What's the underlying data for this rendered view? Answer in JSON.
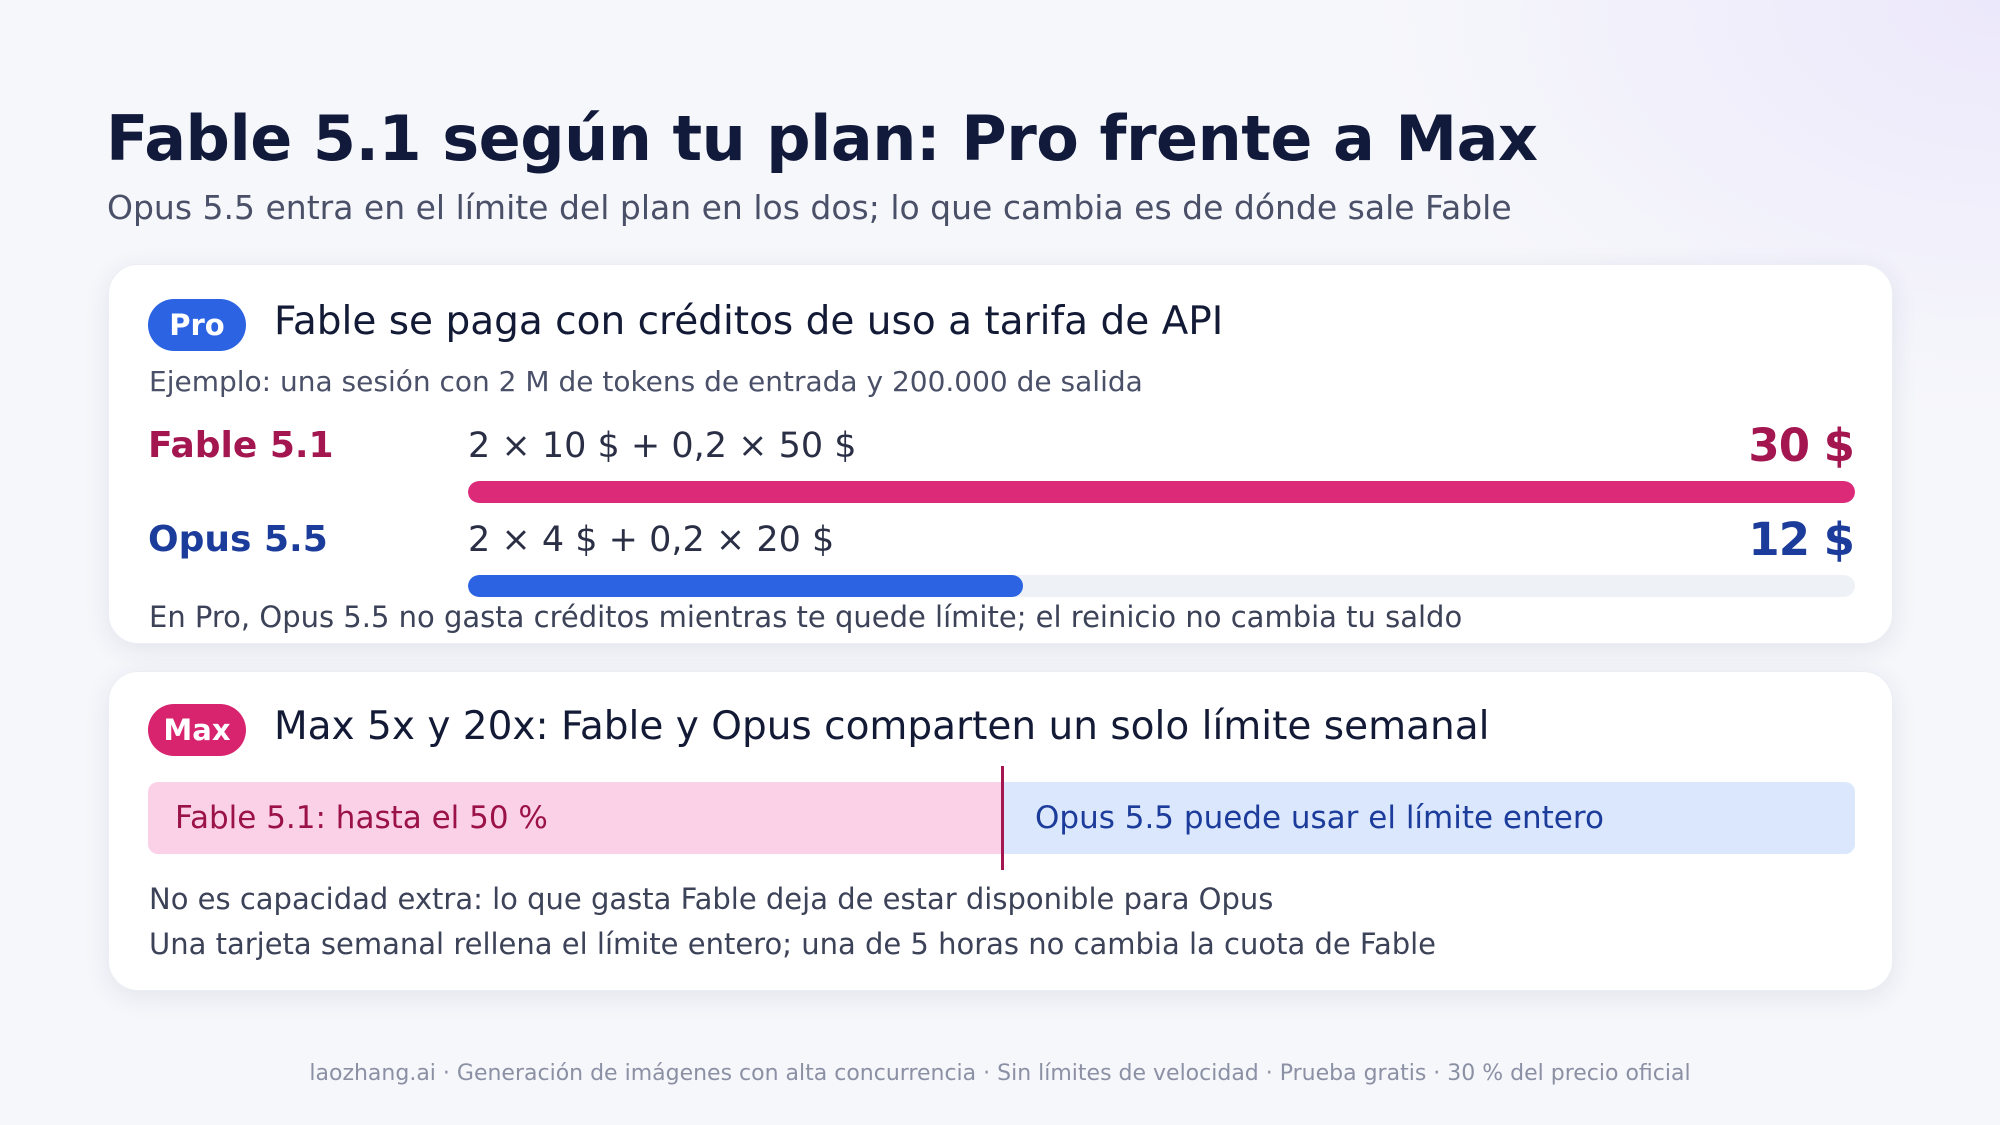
{
  "header": {
    "title": "Fable 5.1 según tu plan: Pro frente a Max",
    "subtitle": "Opus 5.5 entra en el límite del plan en los dos; lo que cambia es de dónde sale Fable"
  },
  "pro_card": {
    "badge": "Pro",
    "title": "Fable se paga con créditos de uso a tarifa de API",
    "example": "Ejemplo: una sesión con 2 M de tokens de entrada y 200.000 de salida",
    "rows": [
      {
        "name": "Fable 5.1",
        "formula": "2 × 10 $ + 0,2 × 50 $",
        "amount": "30 $",
        "value": 30
      },
      {
        "name": "Opus 5.5",
        "formula": "2 × 4 $ + 0,2 × 20 $",
        "amount": "12 $",
        "value": 12
      }
    ],
    "max_value": 30,
    "note": "En Pro, Opus 5.5 no gasta créditos mientras te quede límite; el reinicio no cambia tu saldo"
  },
  "max_card": {
    "badge": "Max",
    "title": "Max 5x y 20x: Fable y Opus comparten un solo límite semanal",
    "fable_share": 0.5,
    "fable_label": "Fable 5.1: hasta el 50 %",
    "opus_label": "Opus 5.5 puede usar el límite entero",
    "notes": [
      "No es capacidad extra: lo que gasta Fable deja de estar disponible para Opus",
      "Una tarjeta semanal rellena el límite entero; una de 5 horas no cambia la cuota de Fable"
    ]
  },
  "footer": "laozhang.ai · Generación de imágenes con alta concurrencia · Sin límites de velocidad · Prueba gratis · 30 % del precio oficial",
  "colors": {
    "pro_accent": "#2b63e3",
    "max_accent": "#d8246f",
    "fable_text": "#a3164f",
    "opus_text": "#1c3c9b"
  }
}
